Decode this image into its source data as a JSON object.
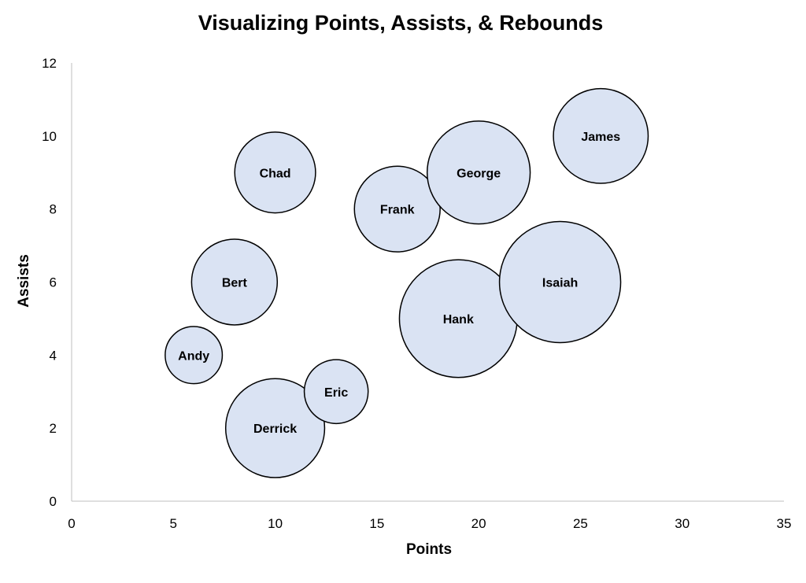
{
  "chart_data": {
    "type": "bubble",
    "title": "Visualizing Points, Assists, & Rebounds",
    "xlabel": "Points",
    "ylabel": "Assists",
    "xlim": [
      0,
      35
    ],
    "ylim": [
      0,
      12
    ],
    "x_ticks": [
      0,
      5,
      10,
      15,
      20,
      25,
      30,
      35
    ],
    "y_ticks": [
      0,
      2,
      4,
      6,
      8,
      10,
      12
    ],
    "grid": false,
    "legend": "none",
    "bubble_color": "#dae3f3",
    "bubble_border": "#000000",
    "points": [
      {
        "label": "Andy",
        "x": 6,
        "y": 4,
        "size": 4
      },
      {
        "label": "Bert",
        "x": 8,
        "y": 6,
        "size": 9
      },
      {
        "label": "Chad",
        "x": 10,
        "y": 9,
        "size": 8
      },
      {
        "label": "Derrick",
        "x": 10,
        "y": 2,
        "size": 12
      },
      {
        "label": "Eric",
        "x": 13,
        "y": 3,
        "size": 5
      },
      {
        "label": "Frank",
        "x": 16,
        "y": 8,
        "size": 9
      },
      {
        "label": "George",
        "x": 20,
        "y": 9,
        "size": 13
      },
      {
        "label": "Hank",
        "x": 19,
        "y": 5,
        "size": 17
      },
      {
        "label": "Isaiah",
        "x": 24,
        "y": 6,
        "size": 18
      },
      {
        "label": "James",
        "x": 26,
        "y": 10,
        "size": 11
      }
    ]
  }
}
